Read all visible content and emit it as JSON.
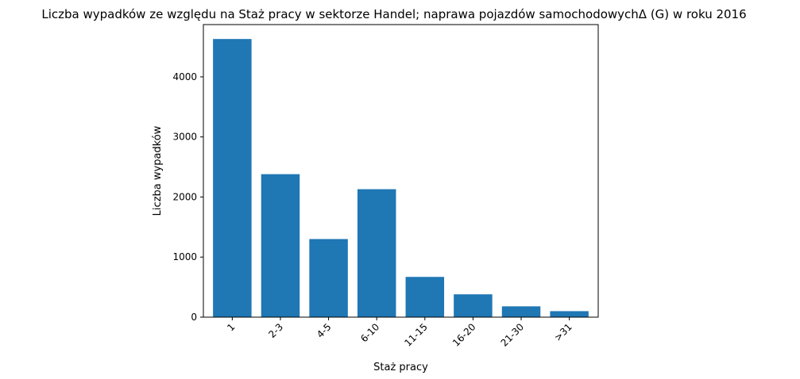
{
  "chart_data": {
    "type": "bar",
    "title": "Liczba wypadków ze względu na Staż pracy w sektorze Handel; naprawa pojazdów samochodowychΔ (G) w roku 2016",
    "xlabel": "Staż pracy",
    "ylabel": "Liczba wypadków",
    "categories": [
      "1",
      "2-3",
      "4-5",
      "6-10",
      "11-15",
      "16-20",
      "21-30",
      ">31"
    ],
    "values": [
      4630,
      2380,
      1300,
      2130,
      670,
      380,
      180,
      100
    ],
    "ylim": [
      0,
      4870
    ],
    "yticks": [
      0,
      1000,
      2000,
      3000,
      4000
    ],
    "bar_color": "#1f77b4",
    "grid": false,
    "legend": "none"
  }
}
